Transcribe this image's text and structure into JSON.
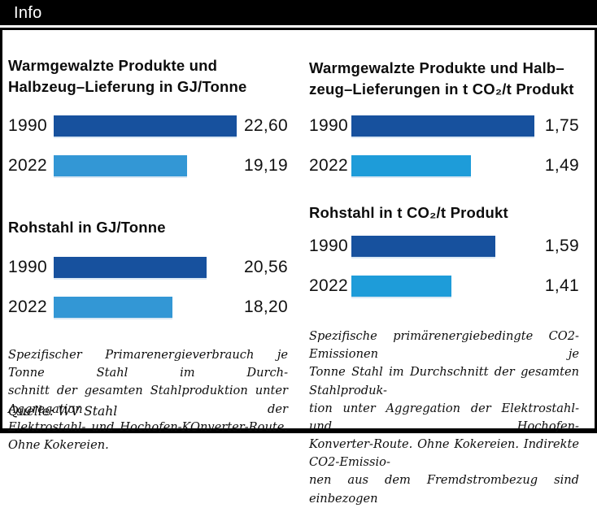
{
  "header": {
    "title": "Info"
  },
  "colors": {
    "header_bg": "#000000",
    "header_text": "#FFFFFF",
    "frame_border": "#000000",
    "bar_dark_blue": "#17519E",
    "bar_light_blue": "#3397D5",
    "bar_cyan_blue": "#1E9CD9"
  },
  "chart_data": [
    {
      "id": "warmgewalzte-energie",
      "type": "bar",
      "orientation": "horizontal",
      "title": "Warmgewalzte Produkte und\nHalbzeug–Lieferung in GJ/Tonne",
      "categories": [
        "1990",
        "2022"
      ],
      "values": [
        22.6,
        19.19
      ],
      "value_labels": [
        "22,60",
        "19,19"
      ],
      "xlim": [
        10,
        23
      ],
      "bar_colors": [
        "#17519E",
        "#3397D5"
      ]
    },
    {
      "id": "warmgewalzte-co2",
      "type": "bar",
      "orientation": "horizontal",
      "title": "Warmgewalzte Produkte und Halb–\nzeug–Lieferungen in t CO₂/t Produkt",
      "categories": [
        "1990",
        "2022"
      ],
      "values": [
        1.75,
        1.49
      ],
      "value_labels": [
        "1,75",
        "1,49"
      ],
      "xlim": [
        1.0,
        1.76
      ],
      "bar_colors": [
        "#17519E",
        "#1E9CD9"
      ]
    },
    {
      "id": "rohstahl-energie",
      "type": "bar",
      "orientation": "horizontal",
      "title": "Rohstahl in GJ/Tonne",
      "categories": [
        "1990",
        "2022"
      ],
      "values": [
        20.56,
        18.2
      ],
      "value_labels": [
        "20,56",
        "18,20"
      ],
      "xlim": [
        10,
        23
      ],
      "bar_colors": [
        "#17519E",
        "#3397D5"
      ]
    },
    {
      "id": "rohstahl-co2",
      "type": "bar",
      "orientation": "horizontal",
      "title": "Rohstahl in t CO₂/t Produkt",
      "categories": [
        "1990",
        "2022"
      ],
      "values": [
        1.59,
        1.41
      ],
      "value_labels": [
        "1,59",
        "1,41"
      ],
      "xlim": [
        1.0,
        1.76
      ],
      "bar_colors": [
        "#17519E",
        "#1E9CD9"
      ]
    }
  ],
  "footnotes": {
    "left_lines": [
      "Spezifischer Primarenergieverbrauch je Tonne Stahl im Durch-",
      "schnitt der gesamten Stahlproduktion unter Aggregation der",
      "Elektrostahl- und Hochofen-KOnverter-Route. Ohne Kokereien."
    ],
    "right_lines": [
      "Spezifische primärenergiebedingte CO2-Emissionen je",
      "Tonne Stahl im Durchschnitt der gesamten Stahlproduk-",
      "tion unter Aggregation der Elektrostahl- und Hochofen-",
      "Konverter-Route. Ohne Kokereien. Indirekte CO2-Emissio-",
      "nen aus dem Fremdstrombezug sind einbezogen"
    ]
  },
  "source": "Quelle: WV Stahl"
}
